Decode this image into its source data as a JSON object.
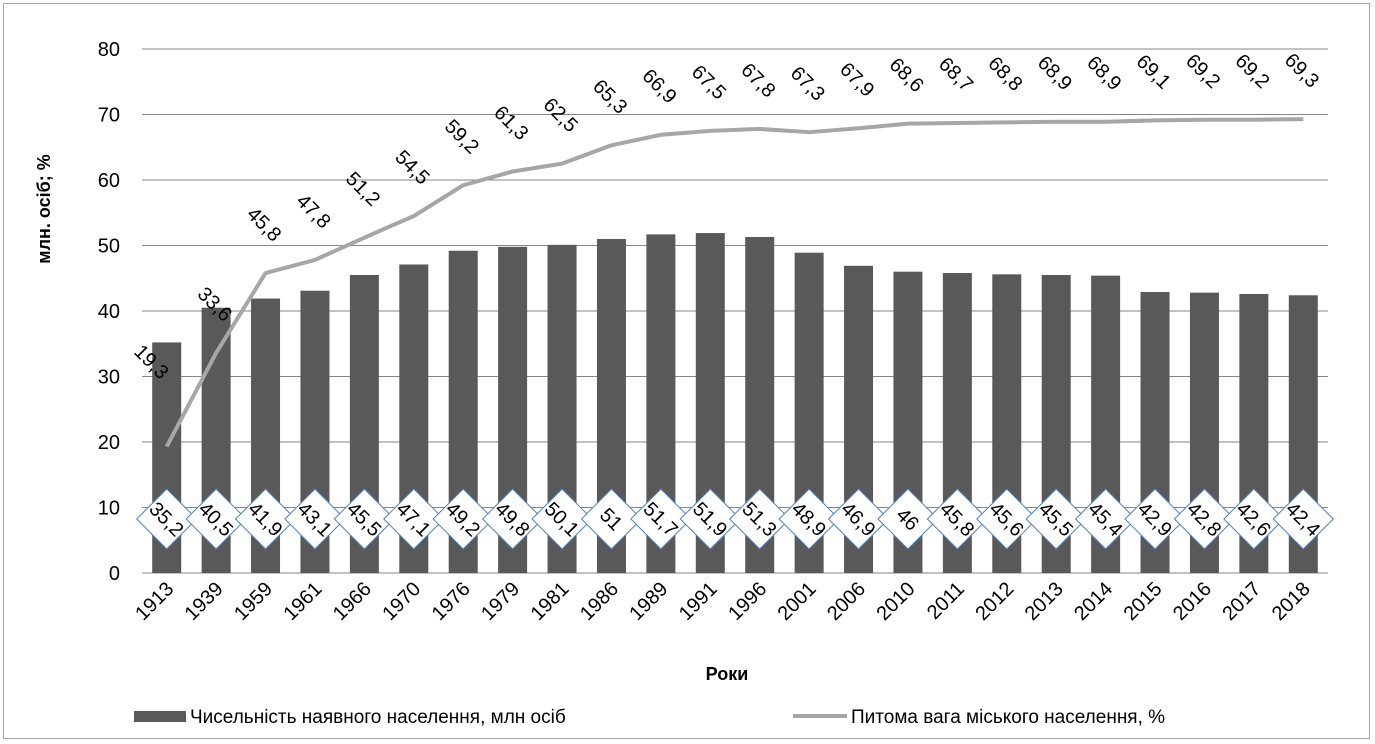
{
  "chart_data": {
    "type": "bar",
    "categories": [
      "1913",
      "1939",
      "1959",
      "1961",
      "1966",
      "1970",
      "1976",
      "1979",
      "1981",
      "1986",
      "1989",
      "1991",
      "1996",
      "2001",
      "2006",
      "2010",
      "2011",
      "2012",
      "2013",
      "2014",
      "2015",
      "2016",
      "2017",
      "2018"
    ],
    "series": [
      {
        "name": "Чисельність наявного населення, млн осіб",
        "type": "bar",
        "color": "#595959",
        "values": [
          35.2,
          40.5,
          41.9,
          43.1,
          45.5,
          47.1,
          49.2,
          49.8,
          50.1,
          51,
          51.7,
          51.9,
          51.3,
          48.9,
          46.9,
          46,
          45.8,
          45.6,
          45.5,
          45.4,
          42.9,
          42.8,
          42.6,
          42.4
        ],
        "labels": [
          "35,2",
          "40,5",
          "41,9",
          "43,1",
          "45,5",
          "47,1",
          "49,2",
          "49,8",
          "50,1",
          "51",
          "51,7",
          "51,9",
          "51,3",
          "48,9",
          "46,9",
          "46",
          "45,8",
          "45,6",
          "45,5",
          "45,4",
          "42,9",
          "42,8",
          "42,6",
          "42,4"
        ]
      },
      {
        "name": "Питома вага міського населення, %",
        "type": "line",
        "color": "#a6a6a6",
        "values": [
          19.3,
          33.6,
          45.8,
          47.8,
          51.2,
          54.5,
          59.2,
          61.3,
          62.5,
          65.3,
          66.9,
          67.5,
          67.8,
          67.3,
          67.9,
          68.6,
          68.7,
          68.8,
          68.9,
          68.9,
          69.1,
          69.2,
          69.2,
          69.3
        ],
        "labels": [
          "19,3",
          "33,6",
          "45,8",
          "47,8",
          "51,2",
          "54,5",
          "59,2",
          "61,3",
          "62,5",
          "65,3",
          "66,9",
          "67,5",
          "67,8",
          "67,3",
          "67,9",
          "68,6",
          "68,7",
          "68,8",
          "68,9",
          "68,9",
          "69,1",
          "69,2",
          "69,2",
          "69,3"
        ]
      }
    ],
    "xlabel": "Роки",
    "ylabel": "млн. осіб; %",
    "ylim": [
      0,
      80
    ],
    "yticks": [
      "0",
      "10",
      "20",
      "30",
      "40",
      "50",
      "60",
      "70",
      "80"
    ],
    "grid": true,
    "legend_position": "bottom"
  }
}
